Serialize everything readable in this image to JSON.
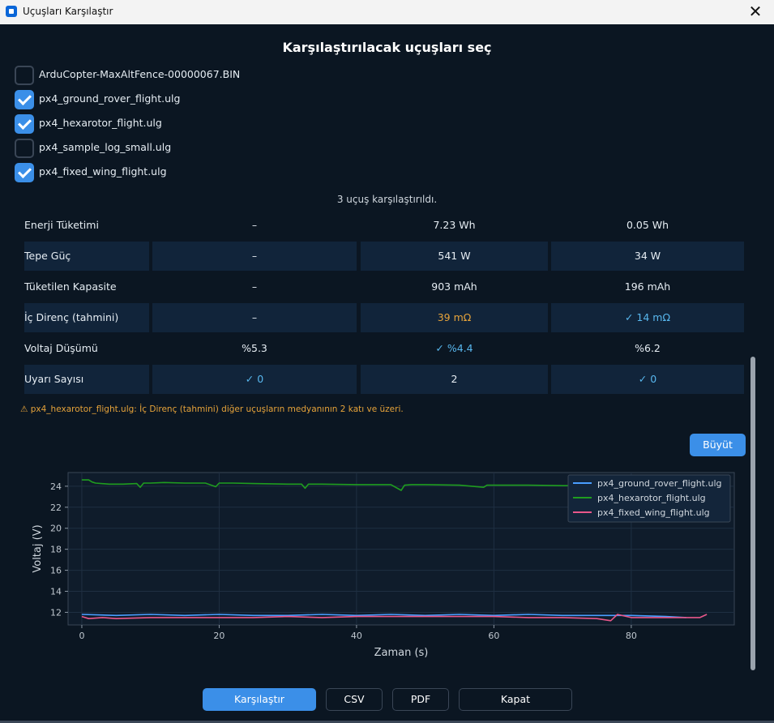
{
  "window": {
    "title": "Uçuşları Karşılaştır",
    "close_glyph": "✕"
  },
  "heading": "Karşılaştırılacak uçuşları seç",
  "flights": [
    {
      "name": "ArduCopter-MaxAltFence-00000067.BIN",
      "checked": false
    },
    {
      "name": "px4_ground_rover_flight.ulg",
      "checked": true
    },
    {
      "name": "px4_hexarotor_flight.ulg",
      "checked": true
    },
    {
      "name": "px4_sample_log_small.ulg",
      "checked": false
    },
    {
      "name": "px4_fixed_wing_flight.ulg",
      "checked": true
    }
  ],
  "status_text": "3 uçuş karşılaştırıldı.",
  "table": {
    "rows": [
      {
        "label": "Enerji Tüketimi",
        "values": [
          "–",
          "7.23 Wh",
          "0.05 Wh"
        ],
        "flags": [
          "",
          "",
          ""
        ],
        "shaded": false
      },
      {
        "label": "Tepe Güç",
        "values": [
          "–",
          "541 W",
          "34 W"
        ],
        "flags": [
          "",
          "",
          ""
        ],
        "shaded": true
      },
      {
        "label": "Tüketilen Kapasite",
        "values": [
          "–",
          "903 mAh",
          "196 mAh"
        ],
        "flags": [
          "",
          "",
          ""
        ],
        "shaded": false
      },
      {
        "label": "İç Direnç (tahmini)",
        "values": [
          "–",
          "39 mΩ",
          "✓ 14 mΩ"
        ],
        "flags": [
          "",
          "warn",
          "good"
        ],
        "shaded": true
      },
      {
        "label": "Voltaj Düşümü",
        "values": [
          "%5.3",
          "✓ %4.4",
          "%6.2"
        ],
        "flags": [
          "",
          "good",
          ""
        ],
        "shaded": false
      },
      {
        "label": "Uyarı Sayısı",
        "values": [
          "✓ 0",
          "2",
          "✓ 0"
        ],
        "flags": [
          "good",
          "",
          "good"
        ],
        "shaded": true
      }
    ]
  },
  "warning_note": "⚠  px4_hexarotor_flight.ulg: İç Direnç (tahmini) diğer uçuşların medyanının 2 katı ve üzeri.",
  "enlarge_button": "Büyüt",
  "chart_data": {
    "type": "line",
    "xlabel": "Zaman (s)",
    "ylabel": "Voltaj (V)",
    "xlim": [
      -2,
      95
    ],
    "ylim": [
      10.8,
      25.3
    ],
    "xticks": [
      0,
      20,
      40,
      60,
      80
    ],
    "yticks": [
      12,
      14,
      16,
      18,
      20,
      22,
      24
    ],
    "grid": true,
    "legend": "top-right",
    "series": [
      {
        "name": "px4_ground_rover_flight.ulg",
        "color": "#4a9eff",
        "x": [
          0,
          5,
          10,
          15,
          20,
          25,
          30,
          35,
          40,
          45,
          50,
          55,
          60,
          65,
          70,
          75,
          80,
          85,
          88
        ],
        "y": [
          11.8,
          11.7,
          11.8,
          11.7,
          11.8,
          11.7,
          11.7,
          11.8,
          11.7,
          11.8,
          11.7,
          11.8,
          11.7,
          11.8,
          11.7,
          11.7,
          11.7,
          11.6,
          11.5
        ]
      },
      {
        "name": "px4_hexarotor_flight.ulg",
        "color": "#1f9d1f",
        "x": [
          0,
          1,
          1.5,
          2,
          4,
          6,
          8,
          8.5,
          9,
          10,
          12,
          15,
          18,
          19.5,
          20,
          22,
          25,
          30,
          32,
          32.5,
          33,
          35,
          40,
          45,
          46.5,
          47,
          48,
          50,
          55,
          58.5,
          59,
          60,
          65,
          70,
          75,
          78,
          80
        ],
        "y": [
          24.6,
          24.6,
          24.4,
          24.3,
          24.2,
          24.2,
          24.25,
          23.9,
          24.3,
          24.3,
          24.35,
          24.3,
          24.3,
          23.95,
          24.3,
          24.3,
          24.25,
          24.2,
          24.2,
          23.8,
          24.2,
          24.2,
          24.15,
          24.15,
          23.6,
          24.1,
          24.15,
          24.15,
          24.1,
          23.9,
          24.1,
          24.1,
          24.1,
          24.05,
          24.05,
          24.05,
          24.05
        ]
      },
      {
        "name": "px4_fixed_wing_flight.ulg",
        "color": "#e8578a",
        "x": [
          0,
          1,
          3,
          5,
          10,
          15,
          20,
          25,
          30,
          35,
          40,
          45,
          50,
          55,
          60,
          65,
          70,
          75,
          77,
          78,
          80,
          85,
          90,
          91
        ],
        "y": [
          11.6,
          11.4,
          11.5,
          11.4,
          11.5,
          11.5,
          11.5,
          11.5,
          11.6,
          11.5,
          11.6,
          11.6,
          11.6,
          11.6,
          11.6,
          11.5,
          11.5,
          11.4,
          11.2,
          11.8,
          11.5,
          11.5,
          11.5,
          11.8
        ]
      }
    ]
  },
  "footer": {
    "compare": "Karşılaştır",
    "csv": "CSV",
    "pdf": "PDF",
    "close": "Kapat"
  },
  "colors": {
    "background": "#0b1622",
    "accent": "#3b8fe8",
    "warning": "#e6a33a",
    "good": "#58b7ee",
    "table_shade": "#11243a"
  }
}
